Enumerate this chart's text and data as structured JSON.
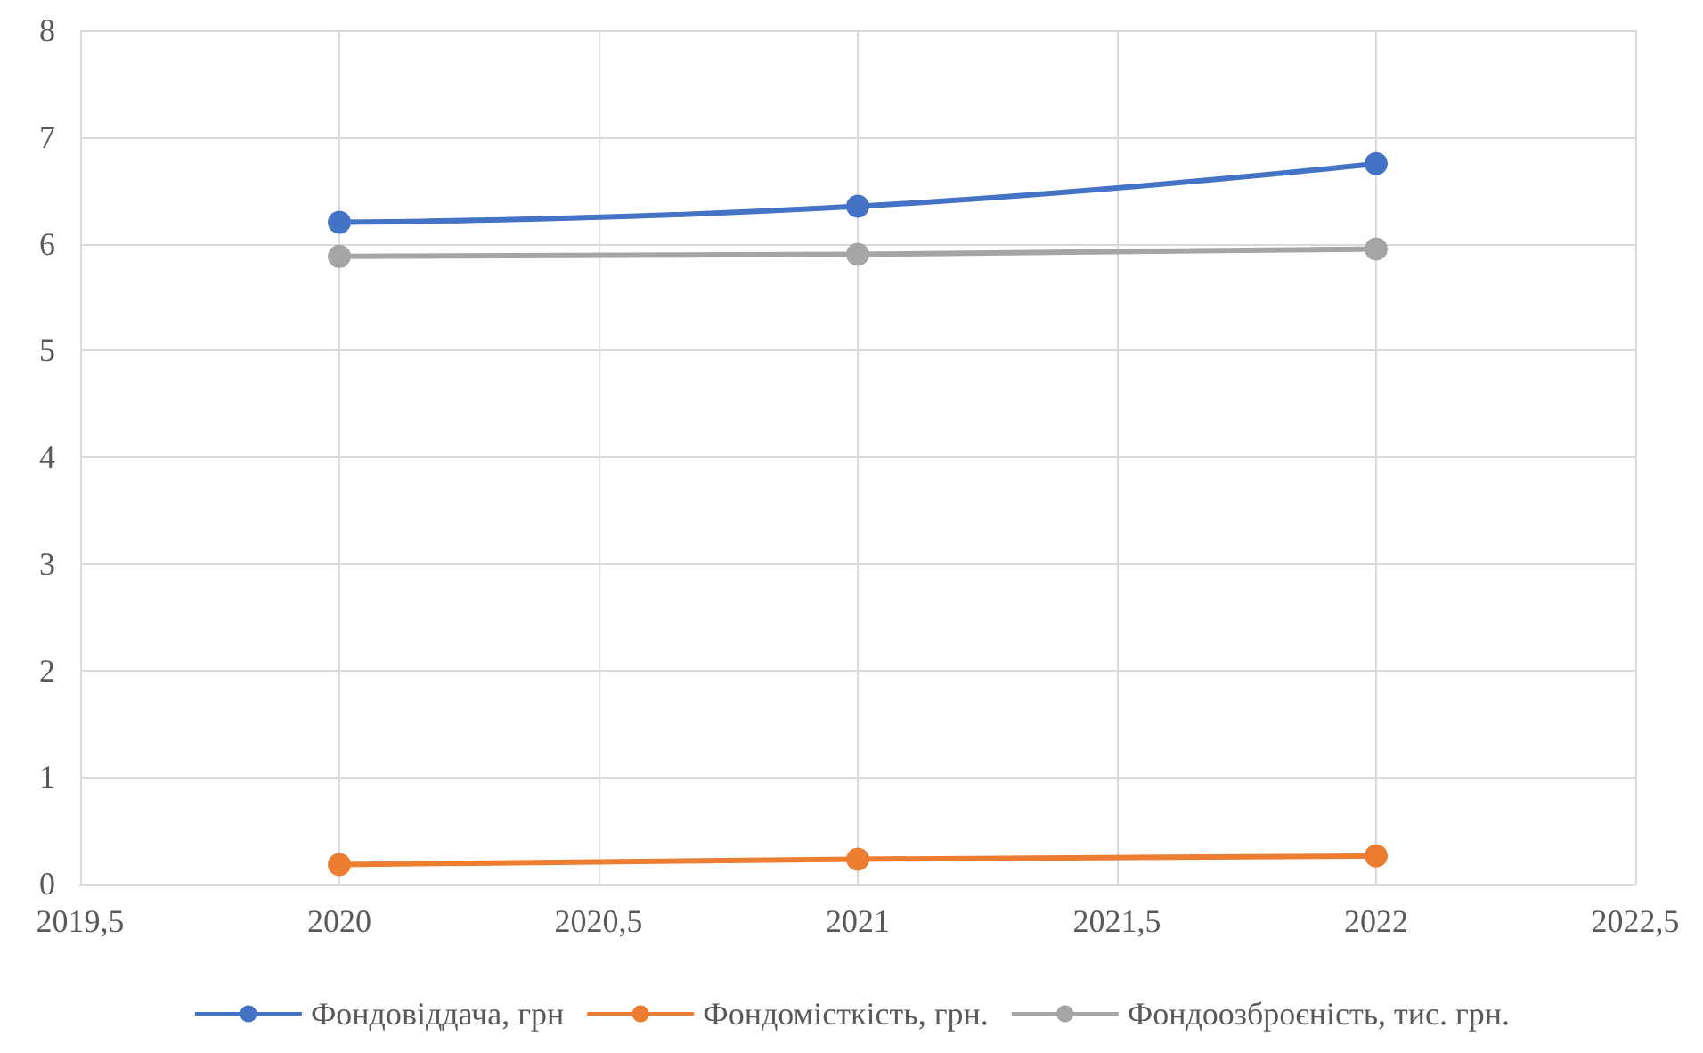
{
  "chart_data": {
    "type": "line",
    "x": [
      2020,
      2021,
      2022
    ],
    "series": [
      {
        "name": "Фондовіддача, грн",
        "color": "#4472c4",
        "values": [
          6.2,
          6.35,
          6.75
        ]
      },
      {
        "name": "Фондомісткість, грн.",
        "color": "#ed7d31",
        "values": [
          0.18,
          0.23,
          0.26
        ]
      },
      {
        "name": "Фондоозброєність, тис. грн.",
        "color": "#a5a5a5",
        "values": [
          5.88,
          5.9,
          5.95
        ]
      }
    ],
    "xlim": [
      2019.5,
      2022.5
    ],
    "xticks": [
      {
        "value": 2019.5,
        "label": "2019,5"
      },
      2020,
      {
        "value": 2020.5,
        "label": "2020,5"
      },
      2021,
      {
        "value": 2021.5,
        "label": "2021,5"
      },
      2022,
      {
        "value": 2022.5,
        "label": "2022,5"
      }
    ],
    "ylim": [
      0,
      8
    ],
    "yticks": [
      0,
      1,
      2,
      3,
      4,
      5,
      6,
      7,
      8
    ],
    "grid": true,
    "legend": "bottom",
    "marker": "circle",
    "line_style": "solid"
  }
}
